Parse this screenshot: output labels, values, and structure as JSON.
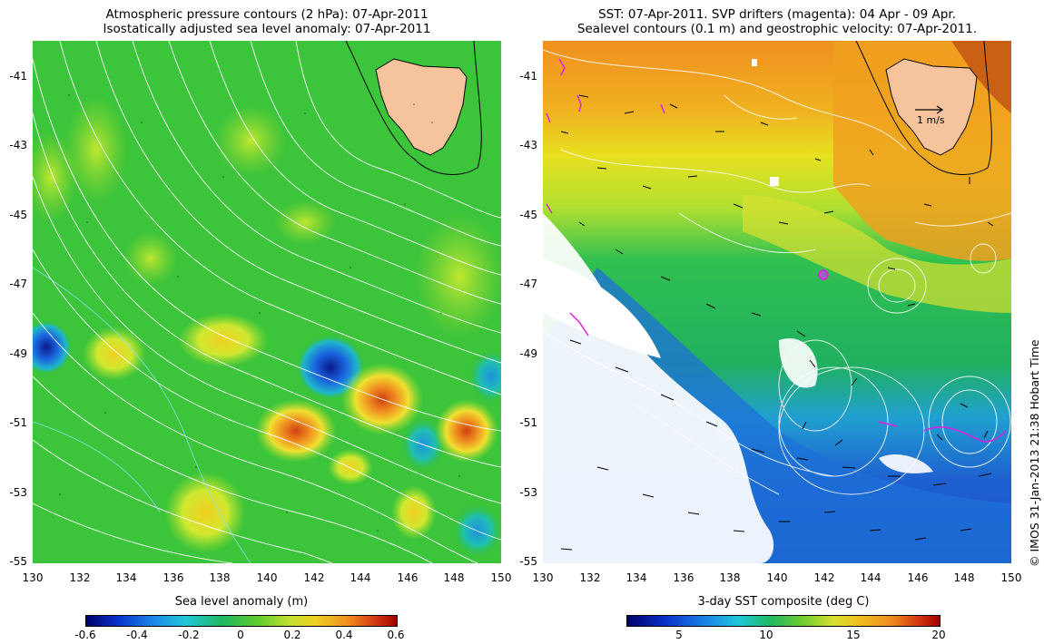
{
  "left_panel": {
    "title_line1": "Atmospheric pressure contours (2 hPa): 07-Apr-2011",
    "title_line2": "Isostatically adjusted sea level anomaly: 07-Apr-2011",
    "y_ticks": [
      "-41",
      "-43",
      "-45",
      "-47",
      "-49",
      "-51",
      "-53",
      "-55"
    ],
    "x_ticks": [
      "130",
      "132",
      "134",
      "136",
      "138",
      "140",
      "142",
      "144",
      "146",
      "148",
      "150"
    ],
    "colorbar_title": "Sea level anomaly (m)",
    "colorbar_ticks": [
      "-0.6",
      "-0.4",
      "-0.2",
      "0",
      "0.2",
      "0.4",
      "0.6"
    ],
    "colors": {
      "ocean_base": "#2fbf3a",
      "land": "#f5c49c"
    }
  },
  "right_panel": {
    "title_line1": "SST: 07-Apr-2011. SVP drifters (magenta): 04 Apr - 09 Apr.",
    "title_line2": "Sealevel contours (0.1 m) and geostrophic velocity: 07-Apr-2011.",
    "y_ticks": [
      "-41",
      "-43",
      "-45",
      "-47",
      "-49",
      "-51",
      "-53",
      "-55"
    ],
    "x_ticks": [
      "130",
      "132",
      "134",
      "136",
      "138",
      "140",
      "142",
      "144",
      "146",
      "148",
      "150"
    ],
    "scale_label": "1 m/s",
    "colorbar_title": "3-day SST composite (deg C)",
    "colorbar_ticks": [
      "5",
      "10",
      "15",
      "20"
    ],
    "colors": {
      "warm": "#f0a020",
      "cool": "#1e60d0",
      "drifters": "#e020e0",
      "cloud": "#ffffff"
    }
  },
  "credit": "© IMOS 31-Jan-2013 21:38 Hobart Time"
}
